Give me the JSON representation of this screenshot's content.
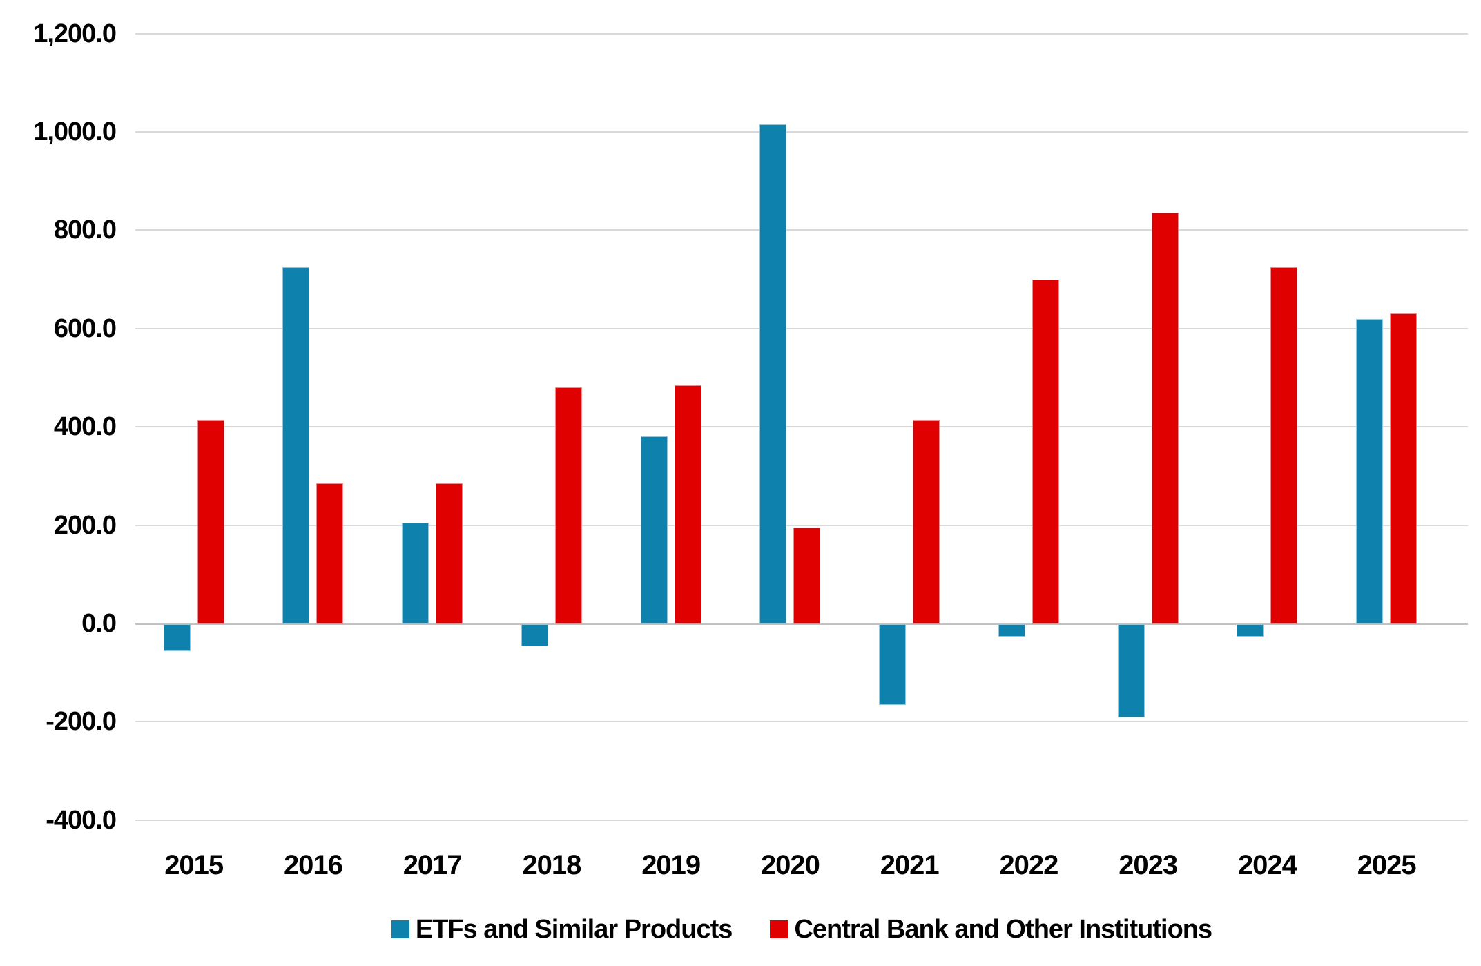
{
  "chart_data": {
    "type": "bar",
    "title": "",
    "categories": [
      "2015",
      "2016",
      "2017",
      "2018",
      "2019",
      "2020",
      "2021",
      "2022",
      "2023",
      "2024",
      "2025"
    ],
    "series": [
      {
        "name": "ETFs and Similar Products",
        "color": "#0e81ad",
        "values": [
          -55,
          725,
          205,
          -45,
          380,
          1015,
          -165,
          -25,
          -190,
          -25,
          620
        ]
      },
      {
        "name": "Central Bank and Other Institutions",
        "color": "#e00000",
        "values": [
          415,
          285,
          285,
          480,
          485,
          195,
          415,
          700,
          835,
          725,
          630
        ]
      }
    ],
    "y_axis": {
      "min": -400,
      "max": 1200,
      "step": 200,
      "tick_labels": [
        "1,200.0",
        "1,000.0",
        "800.0",
        "600.0",
        "400.0",
        "200.0",
        "0.0",
        "-200.0",
        "-400.0"
      ]
    },
    "grid": true,
    "legend_position": "bottom",
    "background_color": "#ffffff",
    "gridline_color": "#d9d9d9"
  }
}
